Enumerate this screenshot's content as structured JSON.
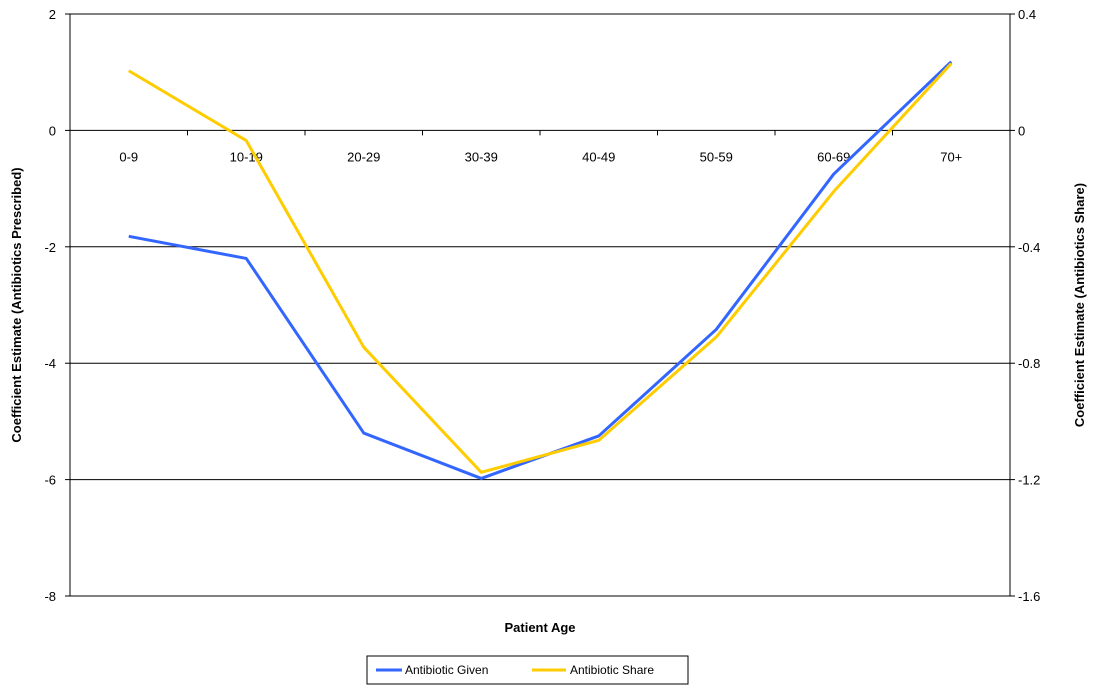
{
  "chart_data": {
    "type": "line",
    "title": "",
    "xlabel": "Patient Age",
    "ylabel": "Coefficient Estimate (Antibiotics Prescribed)",
    "y2label": "Coefficient Estimate (Antibiotics Share)",
    "categories": [
      "0-9",
      "10-19",
      "20-29",
      "30-39",
      "40-49",
      "50-59",
      "60-69",
      "70+"
    ],
    "ylim": [
      -8,
      2
    ],
    "y_ticks": [
      "2",
      "0",
      "-2",
      "-4",
      "-6",
      "-8"
    ],
    "y2lim": [
      -1.6,
      0.4
    ],
    "y2_ticks": [
      "0.4",
      "0",
      "-0.4",
      "-0.8",
      "-1.2",
      "-1.6"
    ],
    "grid": true,
    "legend_position": "bottom",
    "series": [
      {
        "name": "Antibiotic Given",
        "axis": "left",
        "color": "#3366ff",
        "values": [
          -1.82,
          -2.2,
          -5.2,
          -5.98,
          -5.25,
          -3.42,
          -0.75,
          1.18
        ]
      },
      {
        "name": "Antibiotic Share",
        "axis": "right",
        "color": "#ffcc00",
        "values": [
          0.205,
          -0.035,
          -0.745,
          -1.175,
          -1.065,
          -0.71,
          -0.21,
          0.23
        ]
      }
    ]
  }
}
